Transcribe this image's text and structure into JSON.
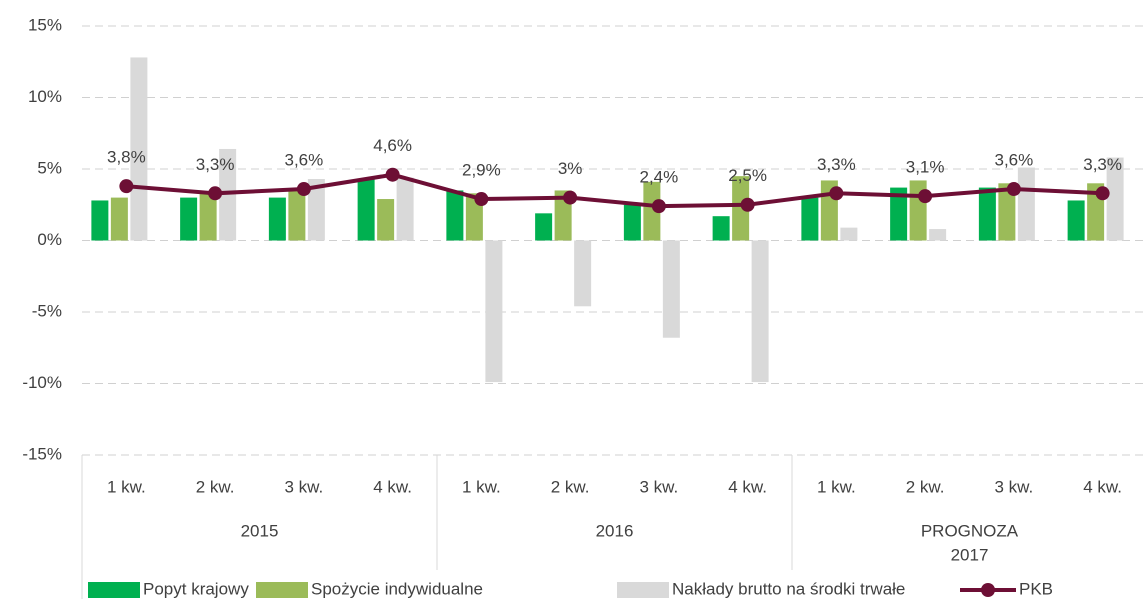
{
  "chart_data": {
    "type": "bar_line",
    "categories": [
      "1 kw.",
      "2 kw.",
      "3 kw.",
      "4 kw.",
      "1 kw.",
      "2 kw.",
      "3 kw.",
      "4 kw.",
      "1 kw.",
      "2 kw.",
      "3 kw.",
      "4 kw."
    ],
    "groups": [
      {
        "label": [
          "2015"
        ],
        "size": 4
      },
      {
        "label": [
          "2016"
        ],
        "size": 4
      },
      {
        "label": [
          "PROGNOZA",
          "2017"
        ],
        "size": 4
      }
    ],
    "series": [
      {
        "name": "Popyt krajowy",
        "kind": "bar",
        "color": "#00b050",
        "values": [
          2.8,
          3.0,
          3.0,
          4.3,
          3.5,
          1.9,
          2.5,
          1.7,
          3.0,
          3.7,
          3.7,
          2.8
        ]
      },
      {
        "name": "Spożycie indywidualne",
        "kind": "bar",
        "color": "#9bbb59",
        "values": [
          3.0,
          3.4,
          3.5,
          2.9,
          3.3,
          3.5,
          4.1,
          4.5,
          4.2,
          4.2,
          4.0,
          4.0
        ]
      },
      {
        "name": "Nakłady brutto na środki trwałe",
        "kind": "bar",
        "color": "#d9d9d9",
        "values": [
          12.8,
          6.4,
          4.3,
          4.4,
          -9.9,
          -4.6,
          -6.8,
          -9.9,
          0.9,
          0.8,
          5.1,
          5.8
        ]
      },
      {
        "name": "PKB",
        "kind": "line",
        "color": "#6d0f35",
        "values": [
          3.8,
          3.3,
          3.6,
          4.6,
          2.9,
          3.0,
          2.4,
          2.5,
          3.3,
          3.1,
          3.6,
          3.3
        ],
        "value_labels": [
          "3,8%",
          "3,3%",
          "3,6%",
          "4,6%",
          "2,9%",
          "3%",
          "2,4%",
          "2,5%",
          "3,3%",
          "3,1%",
          "3,6%",
          "3,3%"
        ]
      }
    ],
    "ylim": [
      -15,
      15
    ],
    "yticks": [
      {
        "value": -15,
        "label": "-15%"
      },
      {
        "value": -10,
        "label": "-10%"
      },
      {
        "value": -5,
        "label": "-5%"
      },
      {
        "value": 0,
        "label": "0%"
      },
      {
        "value": 5,
        "label": "5%"
      },
      {
        "value": 10,
        "label": "10%"
      },
      {
        "value": 15,
        "label": "15%"
      }
    ],
    "grid": true,
    "legend": "bottom"
  }
}
